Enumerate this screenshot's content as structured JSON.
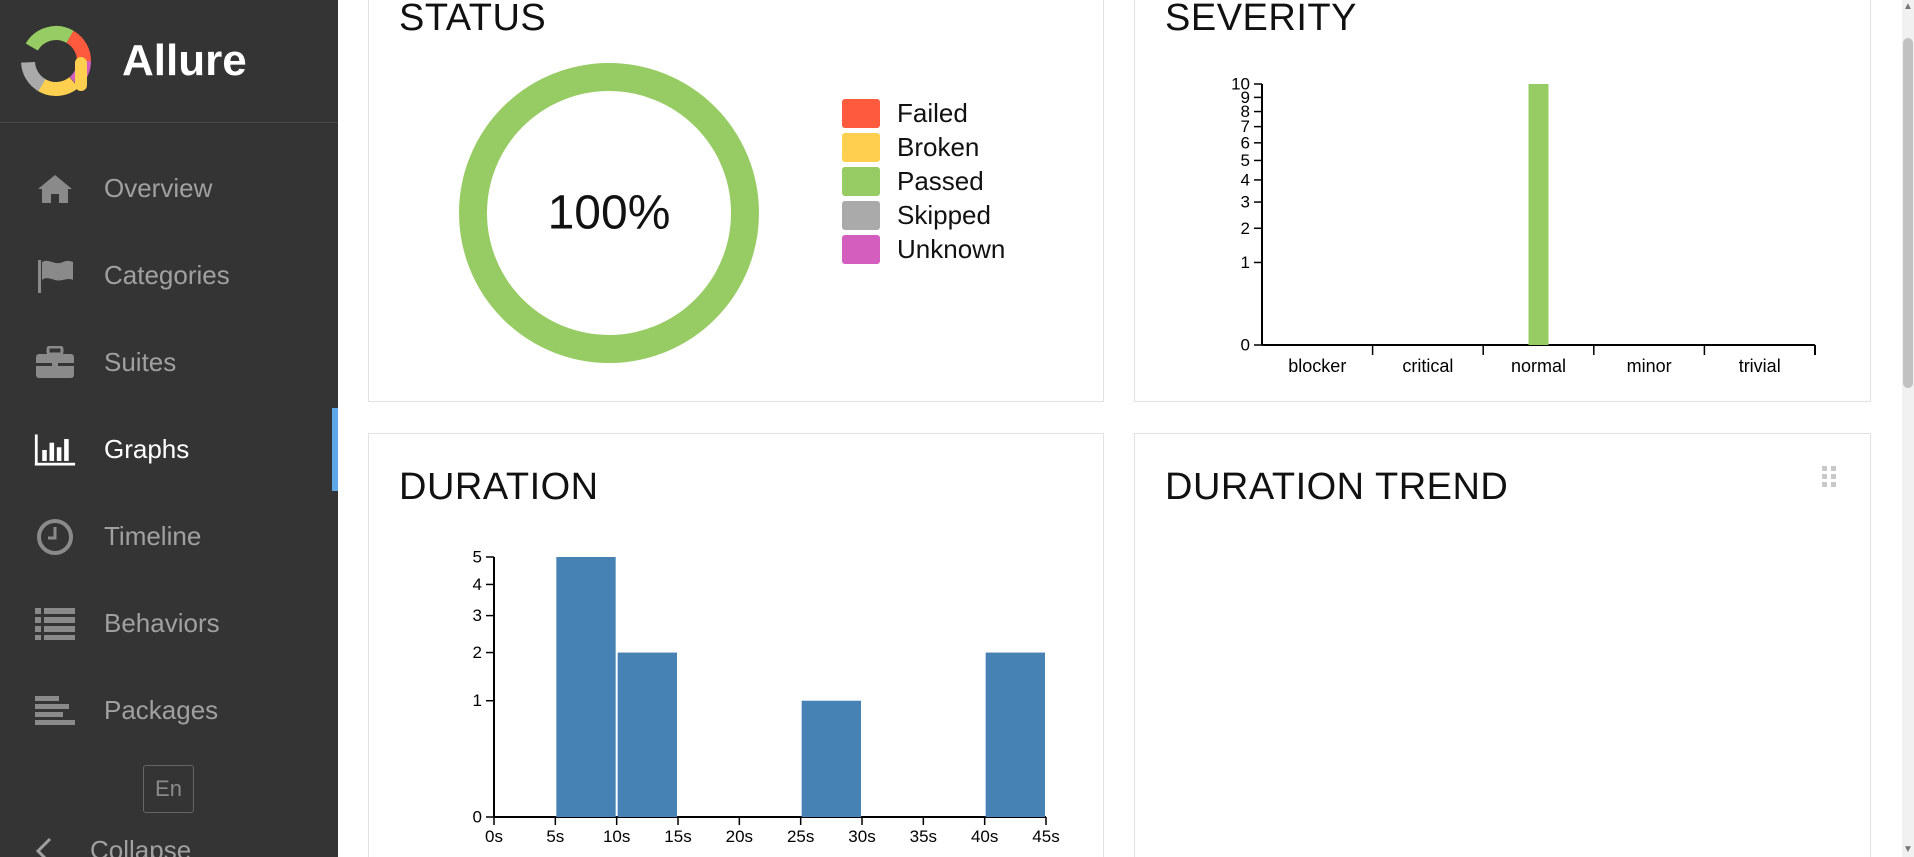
{
  "app": {
    "name": "Allure",
    "brand_colors": [
      "#fd5a3e",
      "#ffd050",
      "#97cc64",
      "#aaaaaa",
      "#d35ebe",
      "#4c8fd4"
    ]
  },
  "sidebar": {
    "items": [
      {
        "label": "Overview",
        "icon": "home-icon",
        "active": false
      },
      {
        "label": "Categories",
        "icon": "flag-icon",
        "active": false
      },
      {
        "label": "Suites",
        "icon": "briefcase-icon",
        "active": false
      },
      {
        "label": "Graphs",
        "icon": "bar-chart-icon",
        "active": true
      },
      {
        "label": "Timeline",
        "icon": "clock-icon",
        "active": false
      },
      {
        "label": "Behaviors",
        "icon": "list-icon",
        "active": false
      },
      {
        "label": "Packages",
        "icon": "align-left-icon",
        "active": false
      }
    ],
    "language": "En",
    "collapse_label": "Collapse",
    "active_indicator_color": "#5fa8e8"
  },
  "widgets": {
    "status": {
      "title": "STATUS",
      "center_text": "100%",
      "legend": [
        {
          "label": "Failed",
          "color": "#fd5a3e"
        },
        {
          "label": "Broken",
          "color": "#ffd050"
        },
        {
          "label": "Passed",
          "color": "#97cc64"
        },
        {
          "label": "Skipped",
          "color": "#aaaaaa"
        },
        {
          "label": "Unknown",
          "color": "#d35ebe"
        }
      ]
    },
    "severity": {
      "title": "SEVERITY"
    },
    "duration": {
      "title": "DURATION"
    },
    "duration_trend": {
      "title": "DURATION TREND"
    }
  },
  "chart_data": [
    {
      "type": "pie",
      "title": "STATUS",
      "labels": [
        "Failed",
        "Broken",
        "Passed",
        "Skipped",
        "Unknown"
      ],
      "values": [
        0,
        0,
        100,
        0,
        0
      ],
      "unit": "%",
      "colors": [
        "#fd5a3e",
        "#ffd050",
        "#97cc64",
        "#aaaaaa",
        "#d35ebe"
      ]
    },
    {
      "type": "bar",
      "title": "SEVERITY",
      "categories": [
        "blocker",
        "critical",
        "normal",
        "minor",
        "trivial"
      ],
      "values": [
        0,
        0,
        10,
        0,
        0
      ],
      "yticks": [
        0,
        1,
        2,
        3,
        4,
        5,
        6,
        7,
        8,
        9,
        10
      ],
      "ylim": [
        0,
        10
      ],
      "yscale": "sqrt",
      "color": "#97cc64"
    },
    {
      "type": "bar",
      "title": "DURATION",
      "bins": [
        [
          5,
          10
        ],
        [
          10,
          15
        ],
        [
          25,
          30
        ],
        [
          40,
          45
        ]
      ],
      "values": [
        5,
        2,
        1,
        2
      ],
      "xticks": [
        "0s",
        "5s",
        "10s",
        "15s",
        "20s",
        "25s",
        "30s",
        "35s",
        "40s",
        "45s"
      ],
      "xlim": [
        0,
        45
      ],
      "yticks": [
        0,
        1,
        2,
        3,
        4,
        5
      ],
      "ylim": [
        0,
        5
      ],
      "yscale": "sqrt",
      "color": "#4682b4"
    }
  ]
}
